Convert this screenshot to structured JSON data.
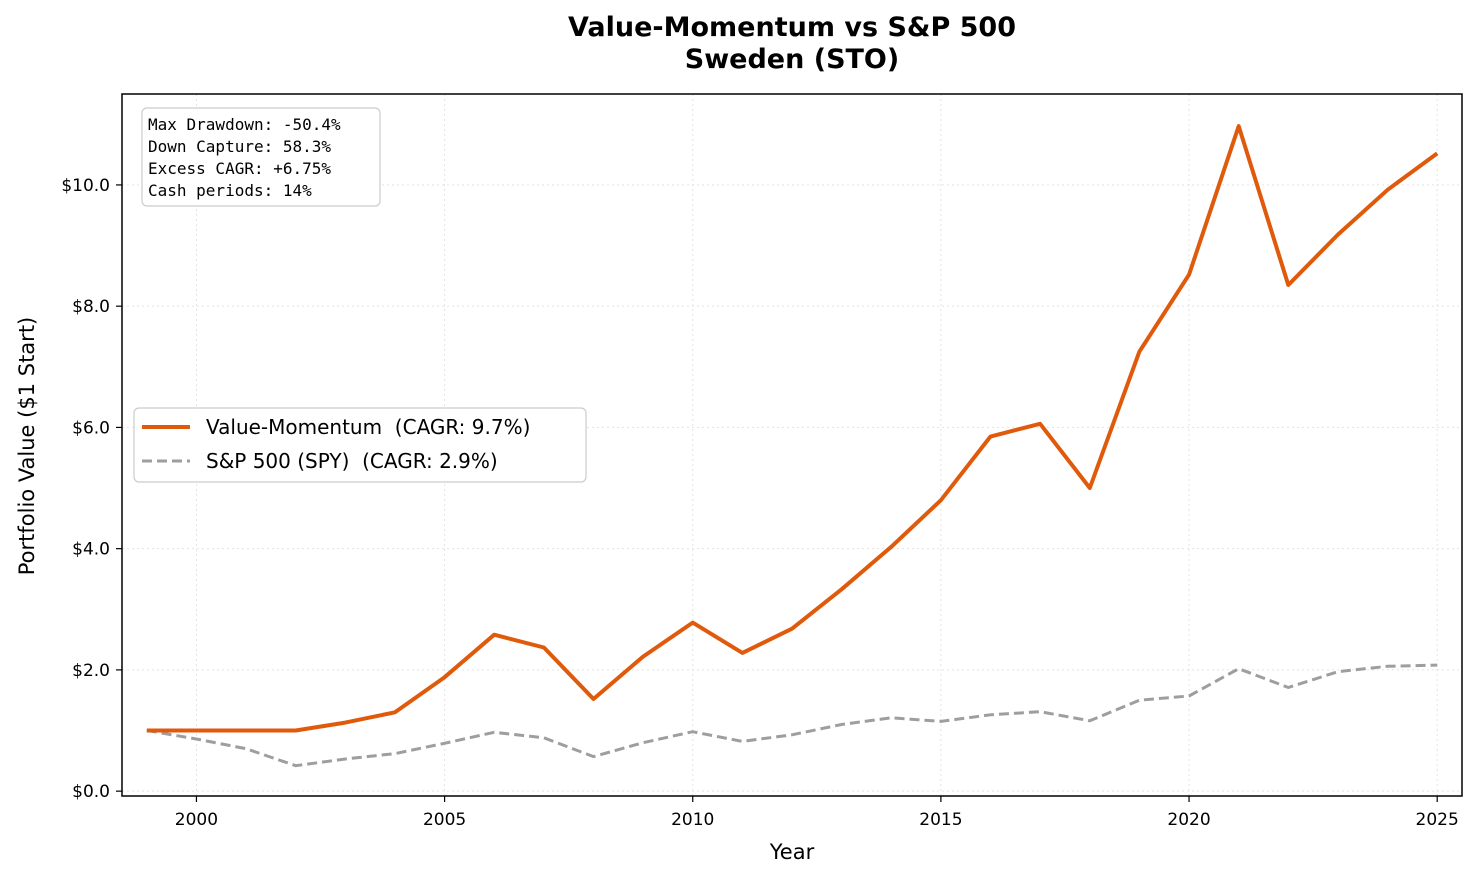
{
  "chart_data": {
    "type": "line",
    "title": "Value-Momentum vs S&P 500",
    "subtitle": "Sweden (STO)",
    "xlabel": "Year",
    "ylabel": "Portfolio Value ($1 Start)",
    "xlim": [
      1998.5,
      2025.5
    ],
    "ylim": [
      -0.08,
      11.5
    ],
    "xticks": [
      2000,
      2005,
      2010,
      2015,
      2020,
      2025
    ],
    "xtick_labels": [
      "2000",
      "2005",
      "2010",
      "2015",
      "2020",
      "2025"
    ],
    "yticks": [
      0,
      2,
      4,
      6,
      8,
      10
    ],
    "ytick_labels": [
      "$0.0",
      "$2.0",
      "$4.0",
      "$6.0",
      "$8.0",
      "$10.0"
    ],
    "grid": true,
    "legend_position": "center-left",
    "x": [
      1999,
      2000,
      2001,
      2002,
      2003,
      2004,
      2005,
      2006,
      2007,
      2008,
      2009,
      2010,
      2011,
      2012,
      2013,
      2014,
      2015,
      2016,
      2017,
      2018,
      2019,
      2020,
      2021,
      2022,
      2023,
      2024,
      2025
    ],
    "series": [
      {
        "name": "Value-Momentum  (CAGR: 9.7%)",
        "color": "#e05a0c",
        "style": "solid",
        "values": [
          1.0,
          1.0,
          1.0,
          1.0,
          1.13,
          1.3,
          1.88,
          2.58,
          2.37,
          1.52,
          2.22,
          2.78,
          2.28,
          2.68,
          3.33,
          4.03,
          4.8,
          5.85,
          6.06,
          5.0,
          7.25,
          8.52,
          10.97,
          8.35,
          9.18,
          9.92,
          10.52
        ]
      },
      {
        "name": "S&P 500 (SPY)  (CAGR: 2.9%)",
        "color": "#9e9e9e",
        "style": "dashed",
        "values": [
          1.0,
          0.86,
          0.7,
          0.42,
          0.53,
          0.62,
          0.79,
          0.97,
          0.88,
          0.57,
          0.8,
          0.98,
          0.82,
          0.93,
          1.1,
          1.21,
          1.15,
          1.26,
          1.31,
          1.16,
          1.5,
          1.57,
          2.02,
          1.71,
          1.97,
          2.06,
          2.08
        ]
      }
    ],
    "stats_box": [
      "Max Drawdown: -50.4%",
      "Down Capture: 58.3%",
      "Excess CAGR: +6.75%",
      "Cash periods: 14%"
    ]
  }
}
